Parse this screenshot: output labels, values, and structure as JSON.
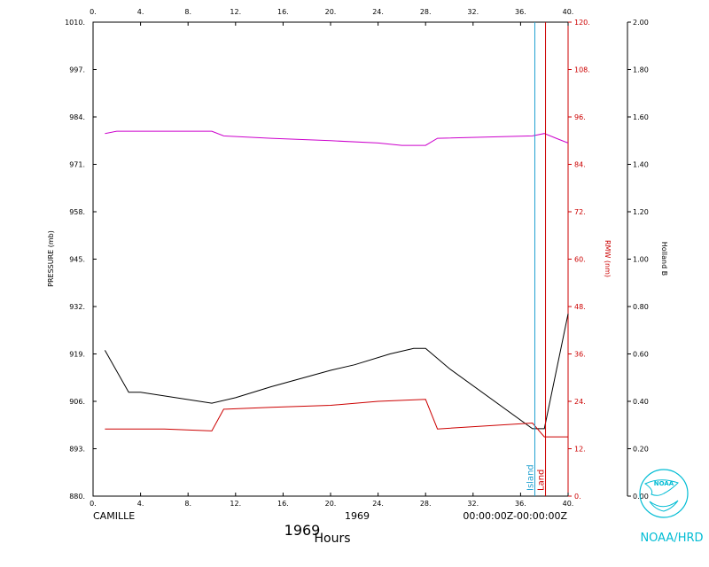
{
  "chart_data": {
    "type": "line",
    "x_top": {
      "range": [
        0,
        40
      ],
      "ticks": [
        0,
        4,
        8,
        12,
        16,
        20,
        24,
        28,
        32,
        36,
        40
      ]
    },
    "x_bottom": {
      "range": [
        0,
        40
      ],
      "ticks": [
        0,
        4,
        8,
        12,
        16,
        20,
        24,
        28,
        32,
        36,
        40
      ],
      "label": "Hours"
    },
    "y_left": {
      "label": "PRESSURE (mb)",
      "range": [
        880,
        1010
      ],
      "ticks": [
        880,
        893,
        906,
        919,
        932,
        945,
        958,
        971,
        984,
        997,
        1010
      ]
    },
    "y_right1": {
      "label": "RMW (nm)",
      "range": [
        0,
        120
      ],
      "ticks": [
        0,
        12,
        24,
        36,
        48,
        60,
        72,
        84,
        96,
        108,
        120
      ]
    },
    "y_right2": {
      "label": "Holland B",
      "range": [
        0,
        2
      ],
      "ticks": [
        "0.00",
        "0.20",
        "0.40",
        "0.60",
        "0.80",
        "1.00",
        "1.20",
        "1.40",
        "1.60",
        "1.80",
        "2.00"
      ]
    },
    "series": [
      {
        "axis": "pressure",
        "color": "#000000",
        "x": [
          1,
          3,
          4,
          10,
          12,
          15,
          20,
          22,
          25,
          27,
          28,
          30,
          37,
          38,
          40
        ],
        "y": [
          920,
          908.5,
          908.5,
          905.5,
          907,
          910,
          914.5,
          916,
          919,
          920.5,
          920.5,
          915,
          898.5,
          898.5,
          930
        ]
      },
      {
        "axis": "rmw",
        "color": "#cc0000",
        "x": [
          1,
          6,
          10,
          11,
          15,
          20,
          24,
          28,
          29,
          37,
          38,
          40
        ],
        "y": [
          17,
          17,
          16.5,
          22,
          22.5,
          23,
          24,
          24.5,
          17,
          18.5,
          15,
          15
        ]
      },
      {
        "axis": "hollandb",
        "color": "#cc00cc",
        "x": [
          1,
          2,
          6,
          10,
          11,
          15,
          20,
          24,
          26,
          28,
          29,
          37,
          38,
          39,
          40
        ],
        "y": [
          1.53,
          1.54,
          1.54,
          1.54,
          1.52,
          1.51,
          1.5,
          1.49,
          1.48,
          1.48,
          1.51,
          1.52,
          1.53,
          1.51,
          1.49
        ]
      }
    ],
    "events": [
      {
        "label": "Island",
        "x": 37.2,
        "color": "#1fa0d0"
      },
      {
        "label": "Land",
        "x": 38.1,
        "color": "#cc0000"
      }
    ],
    "info": {
      "storm": "CAMILLE",
      "year": "1969",
      "date_range": "00:00:00Z-00:00:00Z",
      "year_big": "1969"
    },
    "logo_text": "NOAA/HRD",
    "logo_inner": "NOAA",
    "grid": false,
    "colors": {
      "pressure": "#000000",
      "rmw": "#cc0000",
      "hollandb": "#cc00cc",
      "island": "#1fa0d0",
      "noaa": "#00bcd4"
    }
  }
}
